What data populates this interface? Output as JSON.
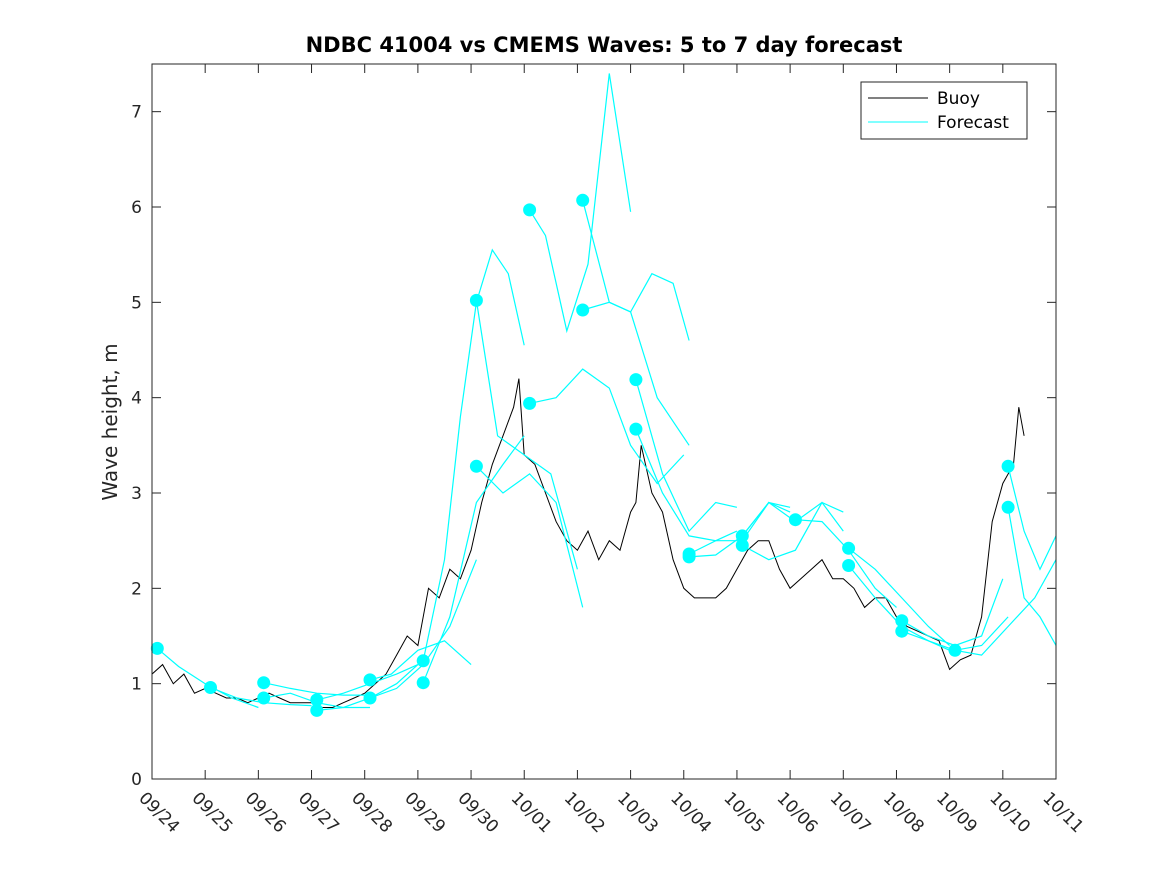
{
  "chart_data": {
    "type": "line",
    "title": "NDBC 41004 vs CMEMS Waves: 5 to 7 day forecast",
    "xlabel": "",
    "ylabel": "Wave height, m",
    "x_unit": "days since 09/24 00:00",
    "xlim": [
      0,
      17
    ],
    "ylim": [
      0,
      7.5
    ],
    "xticks": [
      "09/24",
      "09/25",
      "09/26",
      "09/27",
      "09/28",
      "09/29",
      "09/30",
      "10/01",
      "10/02",
      "10/03",
      "10/04",
      "10/05",
      "10/06",
      "10/07",
      "10/08",
      "10/09",
      "10/10",
      "10/11"
    ],
    "yticks": [
      0,
      1,
      2,
      3,
      4,
      5,
      6,
      7
    ],
    "grid": false,
    "legend": {
      "placement": "top-right",
      "entries": [
        {
          "label": "Buoy",
          "color": "#000000"
        },
        {
          "label": "Forecast",
          "color": "#00FFFF"
        }
      ]
    },
    "colors": {
      "buoy": "#000000",
      "forecast": "#00FFFF",
      "axes": "#262626"
    },
    "series": [
      {
        "name": "Buoy",
        "x": [
          0,
          0.2,
          0.4,
          0.6,
          0.8,
          1.0,
          1.2,
          1.4,
          1.6,
          1.8,
          2.0,
          2.2,
          2.4,
          2.6,
          2.8,
          3.0,
          3.2,
          3.4,
          3.6,
          3.8,
          4.0,
          4.2,
          4.4,
          4.6,
          4.8,
          5.0,
          5.2,
          5.4,
          5.6,
          5.8,
          6.0,
          6.2,
          6.4,
          6.6,
          6.8,
          6.9,
          7.0,
          7.2,
          7.4,
          7.6,
          7.8,
          8.0,
          8.2,
          8.4,
          8.6,
          8.8,
          9.0,
          9.1,
          9.2,
          9.4,
          9.6,
          9.8,
          10.0,
          10.2,
          10.4,
          10.6,
          10.8,
          11.0,
          11.2,
          11.4,
          11.6,
          11.8,
          12.0,
          12.2,
          12.4,
          12.6,
          12.8,
          13.0,
          13.2,
          13.4,
          13.6,
          13.8,
          14.0,
          14.2,
          14.4,
          14.6,
          14.8,
          15.0,
          15.2,
          15.4,
          15.6,
          15.8,
          16.0,
          16.2,
          16.3,
          16.4
        ],
        "values": [
          1.1,
          1.2,
          1.0,
          1.1,
          0.9,
          0.95,
          0.9,
          0.85,
          0.85,
          0.8,
          0.85,
          0.9,
          0.85,
          0.8,
          0.8,
          0.8,
          0.75,
          0.75,
          0.8,
          0.85,
          0.9,
          1.0,
          1.1,
          1.3,
          1.5,
          1.4,
          2.0,
          1.9,
          2.2,
          2.1,
          2.4,
          2.9,
          3.3,
          3.6,
          3.9,
          4.2,
          3.4,
          3.3,
          3.0,
          2.7,
          2.5,
          2.4,
          2.6,
          2.3,
          2.5,
          2.4,
          2.8,
          2.9,
          3.5,
          3.0,
          2.8,
          2.3,
          2.0,
          1.9,
          1.9,
          1.9,
          2.0,
          2.2,
          2.4,
          2.5,
          2.5,
          2.2,
          2.0,
          2.1,
          2.2,
          2.3,
          2.1,
          2.1,
          2.0,
          1.8,
          1.9,
          1.9,
          1.7,
          1.6,
          1.55,
          1.5,
          1.45,
          1.15,
          1.25,
          1.3,
          1.7,
          2.7,
          3.1,
          3.3,
          3.9,
          3.6
        ]
      },
      {
        "name": "Forecast",
        "segments": [
          {
            "x": [
              0.1,
              0.5,
              1.0,
              1.5,
              2.0
            ],
            "values": [
              1.37,
              1.18,
              1.0,
              0.85,
              0.75
            ]
          },
          {
            "x": [
              1.1,
              1.6,
              2.1,
              2.6,
              3.0
            ],
            "values": [
              0.96,
              0.85,
              0.8,
              0.78,
              0.77
            ]
          },
          {
            "x": [
              2.1,
              2.6,
              3.1,
              3.6,
              4.0
            ],
            "values": [
              1.01,
              0.95,
              0.9,
              0.88,
              0.88
            ]
          },
          {
            "x": [
              2.1,
              2.6,
              3.1,
              3.6,
              4.1
            ],
            "values": [
              0.85,
              0.9,
              0.8,
              0.75,
              0.75
            ]
          },
          {
            "x": [
              3.1,
              3.6,
              4.1,
              4.6,
              5.0
            ],
            "values": [
              0.83,
              0.9,
              1.0,
              1.1,
              1.2
            ]
          },
          {
            "x": [
              3.1,
              3.6,
              4.1,
              4.6,
              5.0
            ],
            "values": [
              0.72,
              0.75,
              0.85,
              1.0,
              1.2
            ]
          },
          {
            "x": [
              4.1,
              4.5,
              5.0,
              5.5,
              6.0
            ],
            "values": [
              1.04,
              1.1,
              1.35,
              1.45,
              1.2
            ]
          },
          {
            "x": [
              4.1,
              4.6,
              5.1,
              5.6,
              6.1
            ],
            "values": [
              0.85,
              0.95,
              1.2,
              1.6,
              2.3
            ]
          },
          {
            "x": [
              5.1,
              5.5,
              5.8,
              6.1,
              6.4,
              6.7,
              7.0
            ],
            "values": [
              1.24,
              2.3,
              3.8,
              5.0,
              5.55,
              5.3,
              4.55
            ]
          },
          {
            "x": [
              5.1,
              5.6,
              6.1,
              6.6,
              7.0
            ],
            "values": [
              1.01,
              1.7,
              2.9,
              3.3,
              3.6
            ]
          },
          {
            "x": [
              6.1,
              6.5,
              7.0,
              7.5,
              8.0
            ],
            "values": [
              5.02,
              3.6,
              3.4,
              3.2,
              2.2
            ]
          },
          {
            "x": [
              6.1,
              6.6,
              7.1,
              7.6,
              8.1
            ],
            "values": [
              3.28,
              3.0,
              3.2,
              2.9,
              1.8
            ]
          },
          {
            "x": [
              7.1,
              7.4,
              7.8,
              8.2,
              8.6,
              9.0
            ],
            "values": [
              5.97,
              5.7,
              4.7,
              5.4,
              7.4,
              5.95
            ]
          },
          {
            "x": [
              7.1,
              7.6,
              8.1,
              8.6,
              9.0,
              9.5,
              10.0
            ],
            "values": [
              3.94,
              4.0,
              4.3,
              4.1,
              3.5,
              3.1,
              3.4
            ]
          },
          {
            "x": [
              8.1,
              8.6,
              9.0,
              9.4,
              9.8,
              10.1
            ],
            "values": [
              6.07,
              5.0,
              4.9,
              5.3,
              5.2,
              4.6
            ]
          },
          {
            "x": [
              8.1,
              8.6,
              9.0,
              9.5,
              10.1
            ],
            "values": [
              4.92,
              5.0,
              4.9,
              4.0,
              3.5
            ]
          },
          {
            "x": [
              9.1,
              9.6,
              10.1,
              10.6,
              11.0
            ],
            "values": [
              4.19,
              3.2,
              2.6,
              2.9,
              2.85
            ]
          },
          {
            "x": [
              9.1,
              9.6,
              10.1,
              10.6,
              11.0
            ],
            "values": [
              3.67,
              3.0,
              2.55,
              2.5,
              2.6
            ]
          },
          {
            "x": [
              10.1,
              10.6,
              11.1,
              11.6,
              12.0
            ],
            "values": [
              2.36,
              2.5,
              2.5,
              2.9,
              2.8
            ]
          },
          {
            "x": [
              10.1,
              10.6,
              11.1,
              11.6,
              12.0
            ],
            "values": [
              2.33,
              2.35,
              2.55,
              2.9,
              2.85
            ]
          },
          {
            "x": [
              11.1,
              11.6,
              12.1,
              12.6,
              13.0
            ],
            "values": [
              2.55,
              2.9,
              2.7,
              2.9,
              2.6
            ]
          },
          {
            "x": [
              11.1,
              11.6,
              12.1,
              12.6,
              13.0
            ],
            "values": [
              2.45,
              2.3,
              2.4,
              2.9,
              2.8
            ]
          },
          {
            "x": [
              12.1,
              12.6,
              13.1,
              13.6,
              14.0
            ],
            "values": [
              2.72,
              2.7,
              2.4,
              2.0,
              1.8
            ]
          },
          {
            "x": [
              13.1,
              13.6,
              14.1,
              14.6,
              15.0
            ],
            "values": [
              2.42,
              2.2,
              1.9,
              1.6,
              1.4
            ]
          },
          {
            "x": [
              13.1,
              13.6,
              14.1,
              14.6,
              15.0
            ],
            "values": [
              2.24,
              1.9,
              1.6,
              1.45,
              1.35
            ]
          },
          {
            "x": [
              14.1,
              14.6,
              15.1,
              15.6,
              16.0
            ],
            "values": [
              1.66,
              1.5,
              1.4,
              1.5,
              2.1
            ]
          },
          {
            "x": [
              14.1,
              14.6,
              15.1,
              15.6,
              16.1
            ],
            "values": [
              1.55,
              1.45,
              1.35,
              1.4,
              1.7
            ]
          },
          {
            "x": [
              15.1,
              15.6,
              16.1,
              16.6,
              17.0
            ],
            "values": [
              1.35,
              1.3,
              1.6,
              1.9,
              2.3
            ]
          },
          {
            "x": [
              16.1,
              16.4,
              16.7,
              17.0
            ],
            "values": [
              3.28,
              2.6,
              2.2,
              2.55
            ]
          },
          {
            "x": [
              16.1,
              16.4,
              16.7,
              17.0
            ],
            "values": [
              2.85,
              1.9,
              1.7,
              1.4
            ]
          }
        ],
        "markers": [
          [
            0.1,
            1.37
          ],
          [
            1.1,
            0.96
          ],
          [
            2.1,
            1.01
          ],
          [
            2.1,
            0.85
          ],
          [
            3.1,
            0.83
          ],
          [
            3.1,
            0.72
          ],
          [
            4.1,
            1.04
          ],
          [
            4.1,
            0.85
          ],
          [
            5.1,
            1.24
          ],
          [
            5.1,
            1.01
          ],
          [
            6.1,
            5.02
          ],
          [
            6.1,
            3.28
          ],
          [
            7.1,
            5.97
          ],
          [
            7.1,
            3.94
          ],
          [
            8.1,
            6.07
          ],
          [
            8.1,
            4.92
          ],
          [
            9.1,
            4.19
          ],
          [
            9.1,
            3.67
          ],
          [
            10.1,
            2.36
          ],
          [
            10.1,
            2.33
          ],
          [
            11.1,
            2.55
          ],
          [
            11.1,
            2.45
          ],
          [
            12.1,
            2.72
          ],
          [
            13.1,
            2.42
          ],
          [
            13.1,
            2.24
          ],
          [
            14.1,
            1.66
          ],
          [
            14.1,
            1.55
          ],
          [
            15.1,
            1.35
          ],
          [
            16.1,
            3.28
          ],
          [
            16.1,
            2.85
          ]
        ]
      }
    ]
  }
}
